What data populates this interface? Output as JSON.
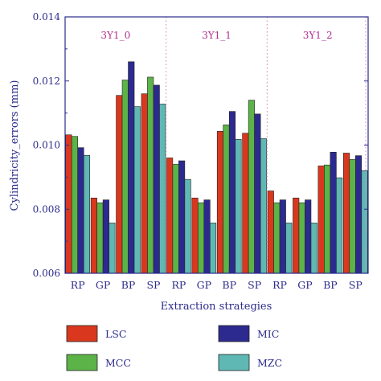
{
  "chart_data": {
    "type": "bar",
    "xlabel": "Extraction strategies",
    "ylabel": "Cylindricity_errors (mm)",
    "ylim": [
      0.006,
      0.014
    ],
    "yticks": [
      "0.006",
      "0.008",
      "0.010",
      "0.012",
      "0.014"
    ],
    "ytick_values": [
      0.006,
      0.008,
      0.01,
      0.012,
      0.014
    ],
    "groups": [
      {
        "label": "3Y1_0",
        "categories": [
          "RP",
          "GP",
          "BP",
          "SP"
        ]
      },
      {
        "label": "3Y1_1",
        "categories": [
          "RP",
          "GP",
          "BP",
          "SP"
        ]
      },
      {
        "label": "3Y1_2",
        "categories": [
          "RP",
          "GP",
          "BP",
          "SP"
        ]
      }
    ],
    "series": [
      {
        "name": "LSC",
        "color": "#d9381e",
        "values": [
          0.01032,
          0.00835,
          0.01155,
          0.0116,
          0.0096,
          0.00835,
          0.01043,
          0.01037,
          0.00857,
          0.00835,
          0.00935,
          0.00975
        ]
      },
      {
        "name": "MCC",
        "color": "#5cb347",
        "values": [
          0.01027,
          0.0082,
          0.01203,
          0.01212,
          0.0094,
          0.0082,
          0.01063,
          0.0114,
          0.0082,
          0.0082,
          0.00938,
          0.00955
        ]
      },
      {
        "name": "MIC",
        "color": "#2c2a8f",
        "values": [
          0.00992,
          0.00829,
          0.0126,
          0.01187,
          0.00951,
          0.00829,
          0.01105,
          0.01097,
          0.00829,
          0.00829,
          0.00978,
          0.00967
        ]
      },
      {
        "name": "MZC",
        "color": "#5fb8b3",
        "values": [
          0.00968,
          0.00757,
          0.0112,
          0.01128,
          0.00893,
          0.00757,
          0.01018,
          0.0102,
          0.00757,
          0.00757,
          0.00898,
          0.0092
        ]
      }
    ],
    "legend_position": "bottom"
  }
}
